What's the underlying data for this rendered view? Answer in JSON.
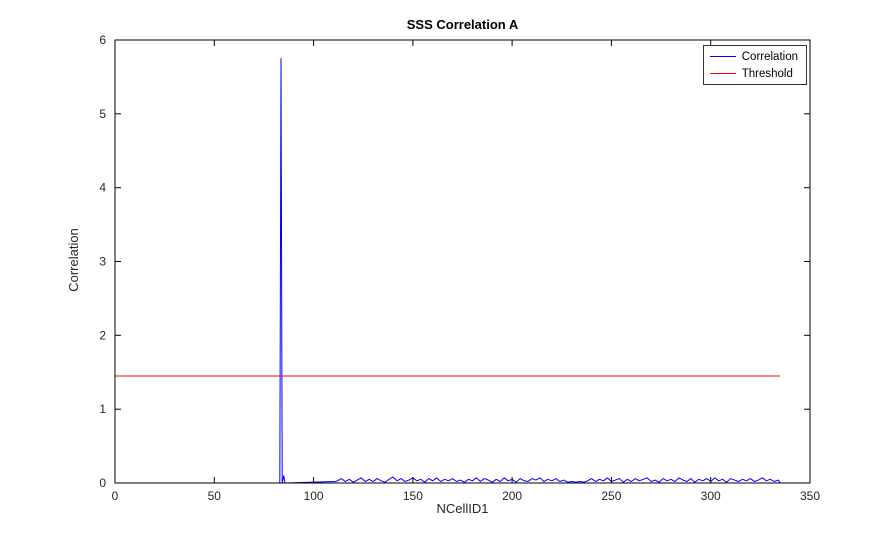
{
  "chart_data": {
    "type": "line",
    "title": "SSS Correlation A",
    "xlabel": "NCellID1",
    "ylabel": "Correlation",
    "xlim": [
      0,
      350
    ],
    "ylim": [
      0,
      6
    ],
    "xticks": [
      0,
      50,
      100,
      150,
      200,
      250,
      300,
      350
    ],
    "yticks": [
      0,
      1,
      2,
      3,
      4,
      5,
      6
    ],
    "grid": false,
    "peak": {
      "x": 84,
      "y": 5.75
    },
    "threshold_value": 1.45,
    "legend": {
      "position": "top-right",
      "entries": [
        {
          "label": "Correlation",
          "color": "#0000ff"
        },
        {
          "label": "Threshold",
          "color": "#ff0000"
        }
      ]
    },
    "series": [
      {
        "name": "Correlation",
        "color": "#0000ff",
        "points": [
          [
            0,
            0
          ],
          [
            83,
            0
          ],
          [
            83.6,
            5.75
          ],
          [
            84.2,
            0
          ],
          [
            85,
            0.1
          ],
          [
            85.6,
            0
          ],
          [
            111,
            0.02
          ]
        ],
        "noise": {
          "x_start": 112,
          "x_step": 2,
          "y": [
            0.03,
            0.06,
            0.02,
            0.05,
            0.01,
            0.04,
            0.07,
            0.02,
            0.05,
            0.02,
            0.06,
            0.03,
            0.01,
            0.05,
            0.08,
            0.03,
            0.06,
            0.02,
            0.04,
            0.07,
            0.03,
            0.05,
            0.01,
            0.06,
            0.03,
            0.07,
            0.02,
            0.05,
            0.03,
            0.06,
            0.02,
            0.04,
            0.01,
            0.05,
            0.03,
            0.07,
            0.02,
            0.06,
            0.04,
            0.01,
            0.05,
            0.02,
            0.07,
            0.03,
            0.05,
            0.01,
            0.06,
            0.03,
            0.02,
            0.06,
            0.04,
            0.07,
            0.02,
            0.05,
            0.03,
            0.06,
            0.02,
            0.04,
            0.01,
            0.02,
            0.01,
            0.02,
            0.01,
            0.03,
            0.06,
            0.02,
            0.05,
            0.03,
            0.07,
            0.02,
            0.04,
            0.06,
            0.01,
            0.05,
            0.02,
            0.06,
            0.03,
            0.05,
            0.07,
            0.02,
            0.04,
            0.01,
            0.06,
            0.03,
            0.05,
            0.02,
            0.07,
            0.04,
            0.02,
            0.06,
            0.01,
            0.05,
            0.03,
            0.06,
            0.02,
            0.07,
            0.03,
            0.05,
            0.01,
            0.06,
            0.04,
            0.02,
            0.05,
            0.03,
            0.06,
            0.02,
            0.04,
            0.07,
            0.03,
            0.05,
            0.02,
            0.04
          ]
        },
        "tail": [
          [
            335,
            0
          ]
        ]
      },
      {
        "name": "Threshold",
        "color": "#ff0000",
        "points": [
          [
            0,
            1.45
          ],
          [
            335,
            1.45
          ]
        ]
      }
    ]
  }
}
